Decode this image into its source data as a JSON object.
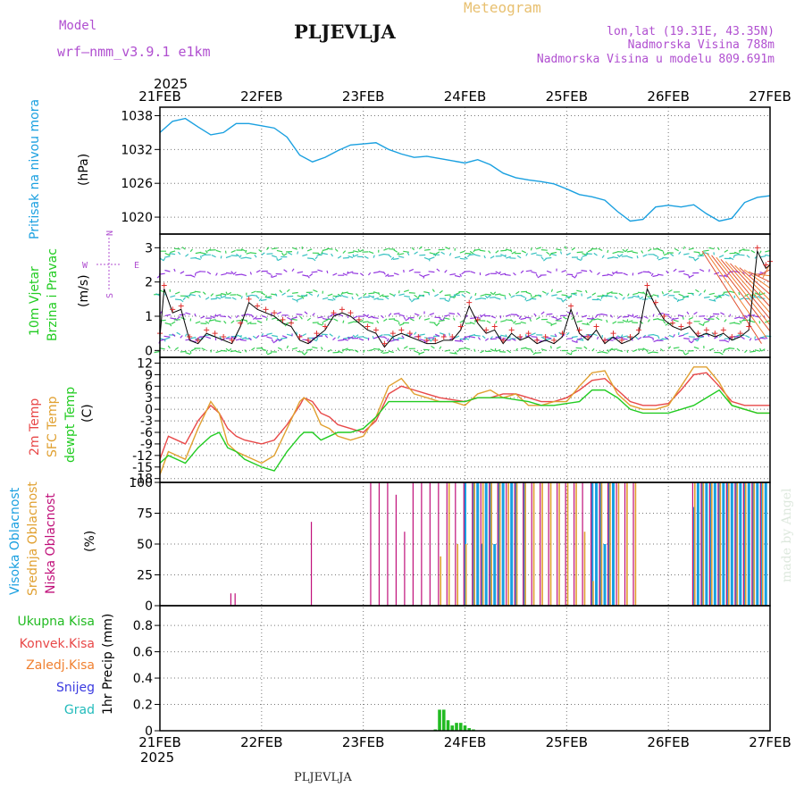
{
  "header": {
    "model_label": "Model",
    "model_name": "wrf–nmm_v3.9.1 e1km",
    "station": "PLJEVLJA",
    "meteogram": "Meteogram",
    "lonlat": "lon,lat (19.31E, 43.35N)",
    "altitude": "Nadmorska Visina 788m",
    "model_altitude": "Nadmorska Visina u modelu 809.691m",
    "year": "2025",
    "footer_station": "PLJEVLJA",
    "credit": "made by Angel"
  },
  "colors": {
    "pressure": "#1aa0e0",
    "temp_2m": "#e84848",
    "sfc_temp": "#e0a030",
    "dewpoint": "#22cc22",
    "high_cloud": "#1aa0e0",
    "mid_cloud": "#e0a030",
    "low_cloud": "#c0107a",
    "precip": "#22bb22",
    "title_purple": "#b04fd0",
    "meteogram_orange": "#e8c070"
  },
  "axes": {
    "dates": [
      "21FEB",
      "22FEB",
      "23FEB",
      "24FEB",
      "25FEB",
      "26FEB",
      "27FEB"
    ]
  },
  "panels": {
    "pressure": {
      "title": "Pritisak na nivou mora",
      "unit": "(hPa)",
      "ticks": [
        "1038",
        "1032",
        "1026",
        "1020"
      ]
    },
    "wind": {
      "title1": "10m Vjetar",
      "title2": "Brzina i Pravac",
      "unit": "(m/s)",
      "ticks": [
        "3",
        "2",
        "1",
        "0"
      ],
      "compass": {
        "n": "N",
        "s": "S",
        "w": "W",
        "e": "E"
      }
    },
    "temp": {
      "title1": "2m Temp",
      "title2": "SFC Temp",
      "title3": "dewpt Temp",
      "unit": "(C)",
      "ticks": [
        "12",
        "9",
        "6",
        "3",
        "0",
        "-3",
        "-6",
        "-9",
        "-12",
        "-15",
        "-18"
      ]
    },
    "cloud": {
      "title1": "Visoka Oblacnost",
      "title2": "Srednja Oblacnost",
      "title3": "Niska Oblacnost",
      "unit": "(%)",
      "ticks": [
        "100",
        "75",
        "50",
        "25",
        "0"
      ]
    },
    "precip": {
      "unit": "1hr Precip (mm)",
      "ticks": [
        "0.8",
        "0.6",
        "0.4",
        "0.2",
        "0"
      ],
      "legend": [
        "Ukupna Kisa",
        "Konvek.Kisa",
        "Zaledj.Kisa",
        "Snijeg",
        "Grad"
      ]
    }
  },
  "chart_data": [
    {
      "type": "line",
      "panel": "pressure",
      "ylabel": "(hPa)",
      "ylim": [
        1017,
        1039.5
      ],
      "x_unit": "hours since 21FEB 00Z",
      "series": [
        {
          "x": [
            0,
            3,
            6,
            9,
            12,
            15,
            18,
            21,
            24,
            27,
            30,
            33,
            36,
            39,
            42,
            45,
            48,
            51,
            54,
            57,
            60,
            63,
            66,
            69,
            72,
            75,
            78,
            81,
            84,
            87,
            90,
            93,
            96,
            99,
            102,
            105,
            108,
            111,
            114,
            117,
            120,
            123,
            126,
            129,
            132,
            135,
            138,
            141,
            144
          ],
          "values": [
            1035,
            1037,
            1037.5,
            1036,
            1034.6,
            1035,
            1036.6,
            1036.6,
            1036.2,
            1035.8,
            1034.2,
            1031,
            1029.8,
            1030.6,
            1031.8,
            1032.8,
            1033,
            1033.2,
            1032,
            1031.2,
            1030.6,
            1030.8,
            1030.4,
            1030,
            1029.6,
            1030.2,
            1029.3,
            1027.8,
            1027,
            1026.6,
            1026.3,
            1025.9,
            1025,
            1024,
            1023.6,
            1023,
            1021,
            1019.3,
            1019.6,
            1021.8,
            1022.1,
            1021.8,
            1022.2,
            1020.6,
            1019.3,
            1019.8,
            1022.6,
            1023.5,
            1023.8
          ]
        }
      ]
    },
    {
      "type": "line",
      "panel": "wind",
      "ylabel": "(m/s)",
      "ylim": [
        -0.2,
        3.4
      ],
      "series": [
        {
          "x": [
            0,
            1,
            3,
            5,
            7,
            9,
            11,
            13,
            15,
            17,
            19,
            21,
            23,
            25,
            27,
            29,
            31,
            33,
            35,
            37,
            39,
            41,
            43,
            45,
            47,
            49,
            51,
            53,
            55,
            57,
            59,
            61,
            63,
            65,
            67,
            69,
            71,
            73,
            75,
            77,
            79,
            81,
            83,
            85,
            87,
            89,
            91,
            93,
            95,
            97,
            99,
            101,
            103,
            105,
            107,
            109,
            111,
            113,
            115,
            117,
            119,
            121,
            123,
            125,
            127,
            129,
            131,
            133,
            135,
            137,
            139,
            141,
            143,
            144
          ],
          "values": [
            0.4,
            1.8,
            1.1,
            1.2,
            0.3,
            0.2,
            0.5,
            0.4,
            0.3,
            0.2,
            0.7,
            1.4,
            1.2,
            1.1,
            1.0,
            0.8,
            0.7,
            0.3,
            0.2,
            0.4,
            0.6,
            1.0,
            1.1,
            1.0,
            0.8,
            0.6,
            0.5,
            0.1,
            0.4,
            0.5,
            0.4,
            0.3,
            0.2,
            0.2,
            0.3,
            0.3,
            0.6,
            1.3,
            0.8,
            0.5,
            0.6,
            0.2,
            0.5,
            0.3,
            0.4,
            0.2,
            0.3,
            0.2,
            0.4,
            1.2,
            0.5,
            0.3,
            0.6,
            0.2,
            0.4,
            0.2,
            0.3,
            0.5,
            1.8,
            1.3,
            0.9,
            0.7,
            0.6,
            0.7,
            0.4,
            0.5,
            0.4,
            0.5,
            0.3,
            0.4,
            0.6,
            2.9,
            2.4,
            2.5
          ]
        }
      ]
    },
    {
      "type": "line",
      "panel": "temp",
      "ylabel": "(C)",
      "ylim": [
        -19,
        13.5
      ],
      "series": [
        {
          "x": [
            0,
            2,
            6,
            9,
            12,
            14,
            16,
            18,
            20,
            24,
            27,
            30,
            33,
            34,
            36,
            38,
            40,
            42,
            45,
            48,
            51,
            54,
            57,
            60,
            63,
            66,
            69,
            72,
            75,
            78,
            81,
            84,
            87,
            90,
            93,
            96,
            99,
            102,
            105,
            108,
            111,
            114,
            117,
            120,
            123,
            126,
            129,
            132,
            135,
            138,
            141,
            144
          ],
          "values": [
            -13,
            -7,
            -9,
            -3,
            1,
            -1,
            -5,
            -7,
            -8,
            -9,
            -8,
            -4,
            1,
            3,
            2,
            -1,
            -2,
            -4,
            -5,
            -6,
            -3,
            4,
            6,
            5,
            4,
            3,
            2.5,
            2,
            3,
            3,
            4,
            4,
            3,
            2,
            2,
            3,
            5,
            7.5,
            8,
            5,
            2,
            1,
            1,
            1.5,
            5,
            9,
            9.5,
            6,
            2,
            1,
            1,
            1
          ]
        },
        {
          "x": [
            0,
            2,
            6,
            9,
            12,
            14,
            16,
            18,
            20,
            24,
            27,
            30,
            33,
            34,
            36,
            38,
            40,
            42,
            45,
            48,
            51,
            54,
            57,
            60,
            63,
            66,
            69,
            72,
            75,
            78,
            81,
            84,
            87,
            90,
            93,
            96,
            99,
            102,
            105,
            108,
            111,
            114,
            117,
            120,
            123,
            126,
            129,
            132,
            135,
            138,
            141,
            144
          ],
          "values": [
            -17,
            -11,
            -13,
            -5,
            2,
            -1,
            -9,
            -11,
            -12,
            -14,
            -12,
            -5,
            2,
            3,
            1,
            -4,
            -5,
            -7,
            -8,
            -7,
            -2,
            6,
            8,
            4,
            3,
            2,
            2,
            1,
            4,
            5,
            3,
            4,
            1,
            1,
            2,
            2,
            6,
            9.5,
            10,
            4,
            1,
            0,
            0,
            1,
            6,
            11,
            11,
            7,
            1,
            0,
            -1,
            -1
          ]
        },
        {
          "x": [
            0,
            2,
            6,
            9,
            12,
            14,
            16,
            18,
            20,
            24,
            27,
            30,
            33,
            34,
            36,
            38,
            40,
            42,
            45,
            48,
            51,
            54,
            57,
            60,
            63,
            66,
            69,
            72,
            75,
            78,
            81,
            84,
            87,
            90,
            93,
            96,
            99,
            102,
            105,
            108,
            111,
            114,
            117,
            120,
            123,
            126,
            129,
            132,
            135,
            138,
            141,
            144
          ],
          "values": [
            -14,
            -12,
            -14,
            -10,
            -7,
            -6,
            -10,
            -11,
            -13,
            -15,
            -16,
            -11,
            -7,
            -6,
            -6,
            -8,
            -7,
            -6,
            -6,
            -5,
            -2,
            2,
            2,
            2,
            2,
            2,
            2,
            2,
            3,
            3,
            3,
            2.5,
            2,
            1,
            1,
            1.5,
            2,
            5,
            5,
            3,
            0,
            -1,
            -1,
            -1,
            0,
            1,
            3,
            5,
            1,
            0,
            -1,
            -1
          ]
        }
      ]
    },
    {
      "type": "bar",
      "panel": "cloud",
      "ylabel": "(%)",
      "ylim": [
        0,
        100
      ],
      "series": [
        {
          "name": "Visoka Oblacnost",
          "x": [
            62,
            63,
            64,
            65,
            66,
            67,
            68,
            70,
            71,
            72,
            73,
            74,
            75,
            76,
            77,
            78,
            79,
            80,
            81,
            82,
            83,
            84,
            85,
            86,
            90,
            91,
            92,
            93,
            94,
            95,
            96,
            97,
            98,
            99,
            100,
            101,
            102,
            103,
            104,
            105,
            106,
            107,
            108,
            109,
            110,
            111,
            126,
            127,
            128,
            129,
            130,
            131,
            132,
            133,
            134,
            135,
            136,
            137,
            138,
            139,
            140,
            141,
            142,
            143
          ],
          "values": [
            0,
            0,
            0,
            0,
            0,
            0,
            0,
            0,
            0,
            100,
            0,
            100,
            100,
            50,
            100,
            100,
            50,
            100,
            100,
            0,
            100,
            100,
            0,
            100,
            0,
            0,
            0,
            0,
            0,
            0,
            0,
            0,
            0,
            0,
            0,
            0,
            100,
            100,
            100,
            50,
            100,
            100,
            0,
            0,
            0,
            0,
            80,
            100,
            100,
            100,
            100,
            100,
            100,
            100,
            100,
            100,
            100,
            100,
            100,
            100,
            100,
            100,
            100,
            100
          ]
        },
        {
          "name": "Srednja Oblacnost",
          "x": [
            66,
            68,
            70,
            72,
            74,
            76,
            78,
            80,
            82,
            84,
            86,
            88,
            90,
            92,
            94,
            96,
            98,
            100,
            102,
            104,
            106,
            108,
            110,
            112,
            126,
            128,
            130,
            132,
            134,
            136,
            138,
            140,
            142
          ],
          "values": [
            40,
            100,
            50,
            50,
            100,
            100,
            100,
            100,
            100,
            100,
            100,
            100,
            100,
            100,
            100,
            100,
            100,
            60,
            20,
            100,
            100,
            100,
            100,
            100,
            100,
            100,
            100,
            100,
            100,
            100,
            100,
            100,
            100
          ]
        },
        {
          "name": "Niska Oblacnost",
          "x": [
            17,
            18,
            36,
            50,
            52,
            54,
            56,
            58,
            60,
            62,
            64,
            66,
            68,
            70,
            72,
            74,
            76,
            78,
            80,
            82,
            84,
            86,
            88,
            90,
            92,
            94,
            96,
            98,
            100,
            102,
            104,
            106,
            108,
            110,
            112,
            114,
            116,
            118,
            120,
            122,
            124,
            126,
            128,
            130,
            132,
            134,
            136,
            138,
            140,
            142
          ],
          "values": [
            10,
            10,
            68,
            100,
            100,
            100,
            90,
            60,
            100,
            100,
            100,
            100,
            100,
            100,
            100,
            100,
            100,
            100,
            100,
            100,
            100,
            100,
            100,
            100,
            100,
            100,
            100,
            100,
            100,
            100,
            100,
            100,
            100,
            100,
            100,
            0,
            0,
            0,
            0,
            0,
            0,
            100,
            100,
            100,
            100,
            100,
            100,
            100,
            100,
            100
          ]
        }
      ]
    },
    {
      "type": "bar",
      "panel": "precip",
      "ylabel": "1hr Precip (mm)",
      "ylim": [
        0,
        0.95
      ],
      "series": [
        {
          "name": "Ukupna Kisa",
          "x": [
            65,
            66,
            67,
            68,
            69,
            70,
            71,
            72,
            73,
            74
          ],
          "values": [
            0.01,
            0.16,
            0.16,
            0.08,
            0.04,
            0.06,
            0.06,
            0.04,
            0.02,
            0.01
          ]
        }
      ]
    }
  ]
}
